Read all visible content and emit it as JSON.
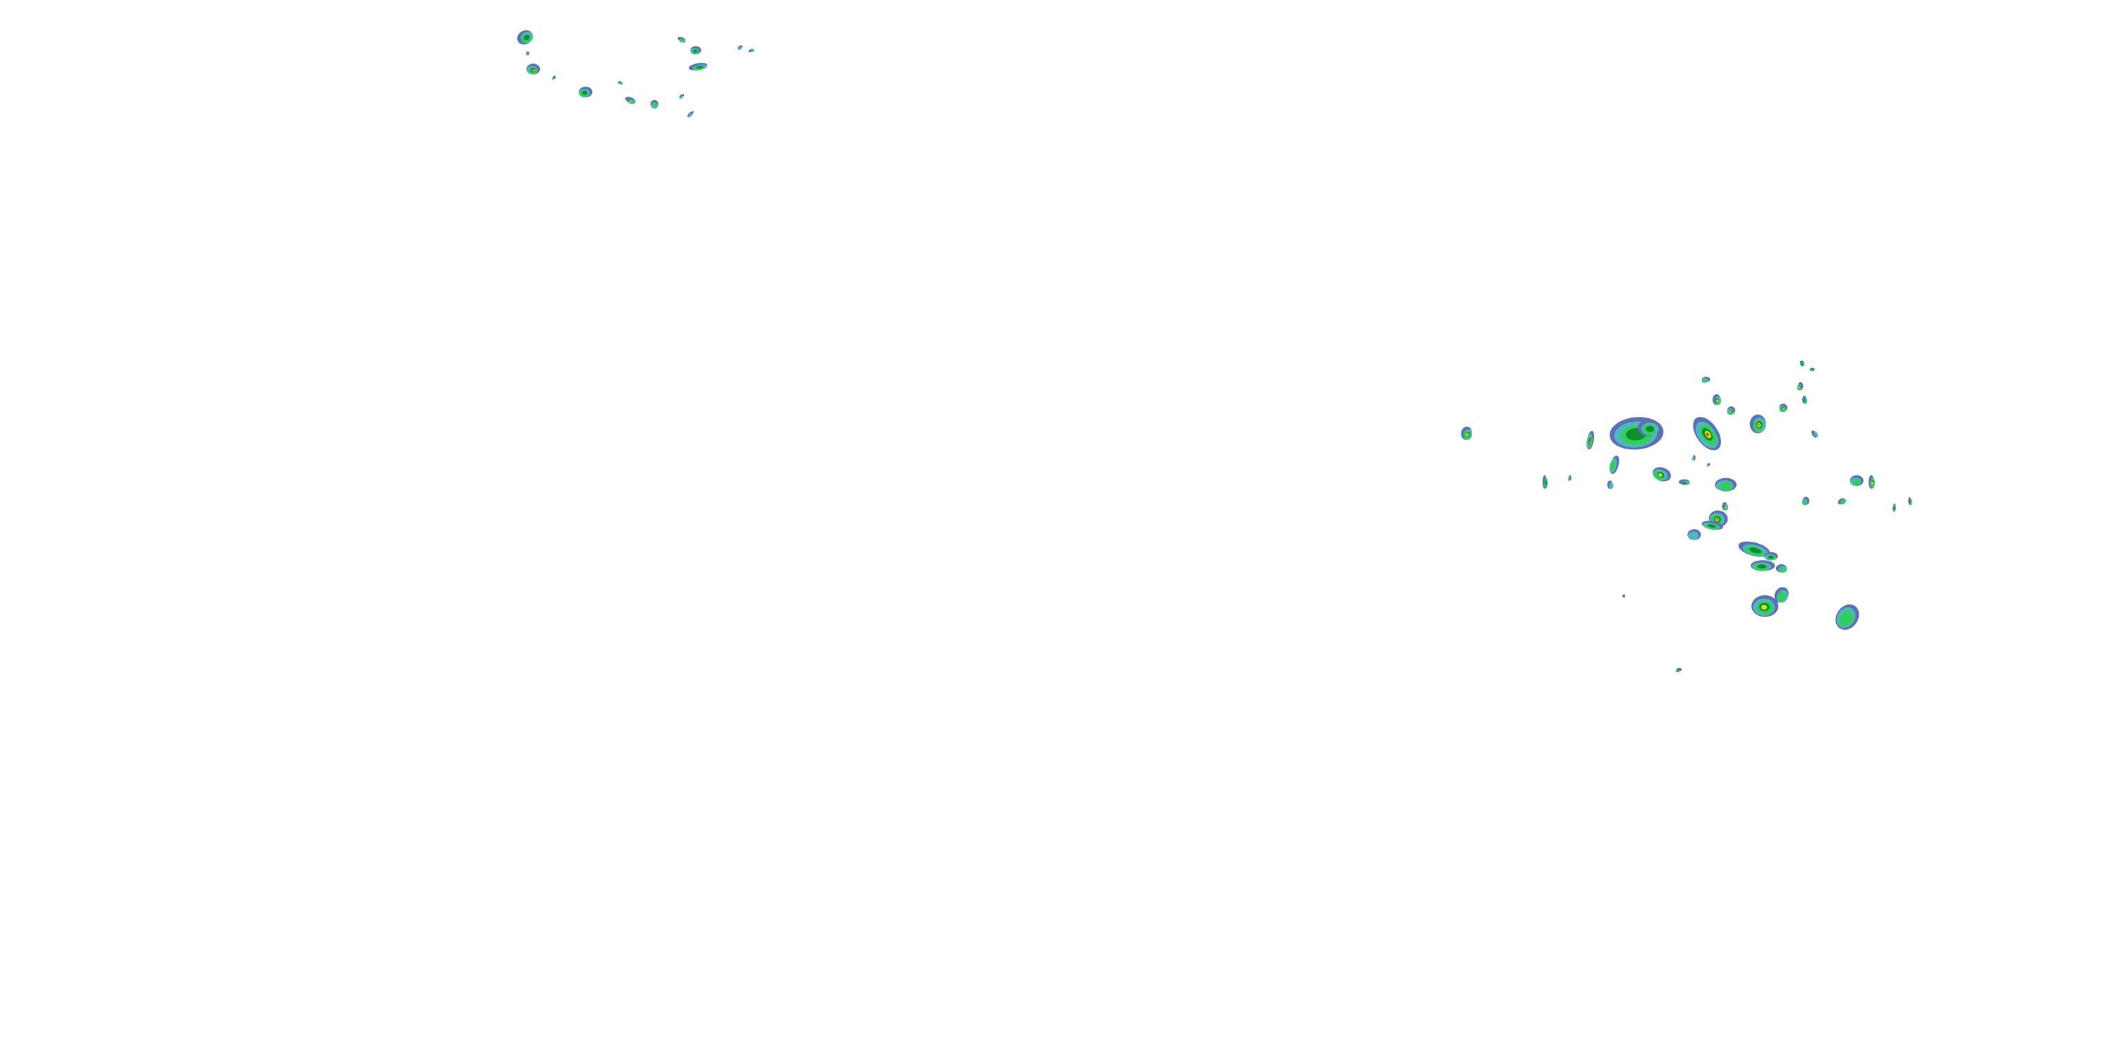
{
  "map": {
    "layer": "radar-reflectivity",
    "background": "#ffffff",
    "palette": {
      "light": "#5a6fb5",
      "light_moderate": "#52b6c0",
      "moderate": "#2fcf5a",
      "moderate_heavy": "#0d8f2c",
      "heavy": "#e6e21a",
      "intense": "#e4261c"
    }
  }
}
